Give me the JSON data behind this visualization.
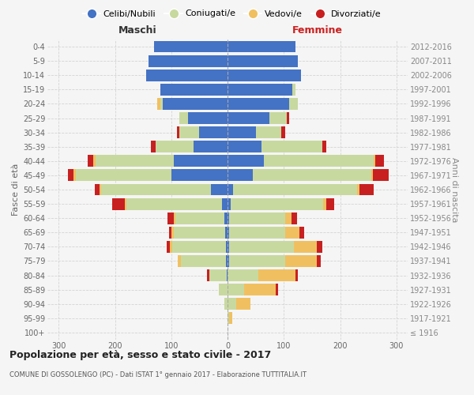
{
  "age_groups": [
    "100+",
    "95-99",
    "90-94",
    "85-89",
    "80-84",
    "75-79",
    "70-74",
    "65-69",
    "60-64",
    "55-59",
    "50-54",
    "45-49",
    "40-44",
    "35-39",
    "30-34",
    "25-29",
    "20-24",
    "15-19",
    "10-14",
    "5-9",
    "0-4"
  ],
  "birth_years": [
    "≤ 1916",
    "1917-1921",
    "1922-1926",
    "1927-1931",
    "1932-1936",
    "1937-1941",
    "1942-1946",
    "1947-1951",
    "1952-1956",
    "1957-1961",
    "1962-1966",
    "1967-1971",
    "1972-1976",
    "1977-1981",
    "1982-1986",
    "1987-1991",
    "1992-1996",
    "1997-2001",
    "2002-2006",
    "2007-2011",
    "2012-2016"
  ],
  "males": {
    "celibi": [
      0,
      0,
      0,
      0,
      2,
      3,
      3,
      4,
      5,
      10,
      30,
      100,
      95,
      60,
      50,
      70,
      115,
      120,
      145,
      140,
      130
    ],
    "coniugati": [
      0,
      0,
      5,
      15,
      30,
      80,
      95,
      92,
      88,
      170,
      195,
      170,
      140,
      68,
      35,
      15,
      5,
      0,
      0,
      0,
      0
    ],
    "vedovi": [
      0,
      0,
      0,
      0,
      0,
      5,
      5,
      3,
      3,
      3,
      3,
      3,
      3,
      0,
      0,
      0,
      5,
      0,
      0,
      0,
      0
    ],
    "divorziati": [
      0,
      0,
      0,
      0,
      5,
      0,
      5,
      5,
      10,
      22,
      8,
      10,
      10,
      8,
      5,
      0,
      0,
      0,
      0,
      0,
      0
    ]
  },
  "females": {
    "nubili": [
      0,
      0,
      0,
      0,
      0,
      3,
      3,
      3,
      3,
      5,
      10,
      45,
      65,
      60,
      50,
      75,
      110,
      115,
      130,
      125,
      120
    ],
    "coniugate": [
      0,
      3,
      15,
      30,
      55,
      100,
      115,
      100,
      100,
      165,
      220,
      210,
      195,
      108,
      45,
      30,
      15,
      5,
      0,
      0,
      0
    ],
    "vedove": [
      0,
      5,
      25,
      55,
      65,
      55,
      40,
      25,
      10,
      5,
      5,
      3,
      3,
      0,
      0,
      0,
      0,
      0,
      0,
      0,
      0
    ],
    "divorziate": [
      0,
      0,
      0,
      5,
      5,
      7,
      10,
      8,
      10,
      15,
      25,
      28,
      15,
      8,
      8,
      5,
      0,
      0,
      0,
      0,
      0
    ]
  },
  "colors": {
    "celibi_nubili": "#4472C4",
    "coniugati": "#c8d9a0",
    "vedovi": "#f0c060",
    "divorziati": "#c82020"
  },
  "xlim": 320,
  "title": "Popolazione per età, sesso e stato civile - 2017",
  "subtitle": "COMUNE DI GOSSOLENGO (PC) - Dati ISTAT 1° gennaio 2017 - Elaborazione TUTTITALIA.IT",
  "ylabel_left": "Fasce di età",
  "ylabel_right": "Anni di nascita",
  "xlabel_left": "Maschi",
  "xlabel_right": "Femmine",
  "bg_color": "#f5f5f5",
  "grid_color": "#cccccc",
  "legend_labels": [
    "Celibi/Nubili",
    "Coniugati/e",
    "Vedovi/e",
    "Divorziati/e"
  ]
}
